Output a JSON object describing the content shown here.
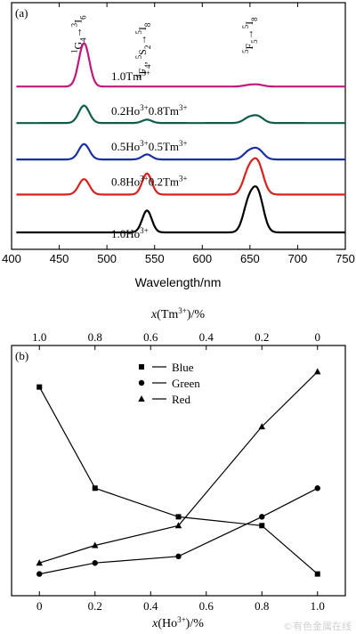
{
  "chart_data": [
    {
      "type": "line",
      "panel_label": "(a)",
      "xlabel": "Wavelength/nm",
      "ylabel": "",
      "xlim": [
        400,
        750
      ],
      "x_ticks": [
        400,
        450,
        500,
        550,
        600,
        650,
        700,
        750
      ],
      "transition_labels": [
        {
          "at_nm": 475,
          "html": "<tspan baseline-shift='super' font-size='9'>1</tspan>G<tspan baseline-shift='sub' font-size='9'>4</tspan>→<tspan baseline-shift='super' font-size='9'>3</tspan>I<tspan baseline-shift='sub' font-size='9'>6</tspan>"
        },
        {
          "at_nm": 543,
          "html": "<tspan baseline-shift='super' font-size='9'>4</tspan>F<tspan baseline-shift='sub' font-size='9'>4</tspan>, <tspan baseline-shift='super' font-size='9'>5</tspan>S<tspan baseline-shift='sub' font-size='9'>2</tspan>→<tspan baseline-shift='super' font-size='9'>5</tspan>I<tspan baseline-shift='sub' font-size='9'>8</tspan>"
        },
        {
          "at_nm": 655,
          "html": "<tspan baseline-shift='super' font-size='9'>5</tspan>F<tspan baseline-shift='sub' font-size='9'>5</tspan>→<tspan baseline-shift='super' font-size='9'>5</tspan>I<tspan baseline-shift='sub' font-size='9'>8</tspan>"
        }
      ],
      "series": [
        {
          "label_html": "1.0Tm<tspan baseline-shift='super' font-size='9'>3+</tspan>",
          "color": "#c2187b",
          "baseline": 5.2,
          "peaks": {
            "blue": 1.55,
            "green": 0.0,
            "red": 0.08
          }
        },
        {
          "label_html": "0.2Ho<tspan baseline-shift='super' font-size='9'>3+</tspan>0.8Tm<tspan baseline-shift='super' font-size='9'>3+</tspan>",
          "color": "#0f5c4a",
          "baseline": 3.9,
          "peaks": {
            "blue": 0.62,
            "green": 0.12,
            "red": 0.28
          }
        },
        {
          "label_html": "0.5Ho<tspan baseline-shift='super' font-size='9'>3+</tspan>0.5Tm<tspan baseline-shift='super' font-size='9'>3+</tspan>",
          "color": "#1a2fa0",
          "baseline": 2.6,
          "peaks": {
            "blue": 0.55,
            "green": 0.18,
            "red": 0.42
          }
        },
        {
          "label_html": "0.8Ho<tspan baseline-shift='super' font-size='9'>3+</tspan>0.2Tm<tspan baseline-shift='super' font-size='9'>3+</tspan>",
          "color": "#d8201c",
          "baseline": 1.35,
          "peaks": {
            "blue": 0.55,
            "green": 0.75,
            "red": 1.3
          }
        },
        {
          "label_html": "1.0Ho<tspan baseline-shift='super' font-size='9'>3+</tspan>",
          "color": "#000000",
          "baseline": 0.0,
          "peaks": {
            "blue": 0.0,
            "green": 0.78,
            "red": 1.65
          }
        }
      ]
    },
    {
      "type": "line",
      "panel_label": "(b)",
      "xlabel_html": "<tspan font-style='italic'>x</tspan>(Ho<tspan baseline-shift='super' font-size='9'>3+</tspan>)/%",
      "x2label_html": "<tspan font-style='italic'>x</tspan>(Tm<tspan baseline-shift='super' font-size='9'>3+</tspan>)/%",
      "x": [
        0,
        0.2,
        0.5,
        0.8,
        1.0
      ],
      "xlim": [
        -0.1,
        1.1
      ],
      "x_ticks": [
        0,
        0.2,
        0.4,
        0.6,
        0.8,
        1.0
      ],
      "x_tick_labels": [
        "0",
        "0.2",
        "0.4",
        "0.6",
        "0.8",
        "1.0"
      ],
      "x2_tick_labels": [
        "1.0",
        "0.8",
        "0.6",
        "0.4",
        "0.2",
        "0"
      ],
      "ylim": [
        0,
        1
      ],
      "legend_position": "top-center",
      "series": [
        {
          "name": "Blue",
          "marker": "square",
          "values": [
            0.88,
            0.42,
            0.29,
            0.25,
            0.03
          ]
        },
        {
          "name": "Green",
          "marker": "circle",
          "values": [
            0.03,
            0.08,
            0.11,
            0.29,
            0.42
          ]
        },
        {
          "name": "Red",
          "marker": "triangle",
          "values": [
            0.08,
            0.16,
            0.25,
            0.7,
            0.95
          ]
        }
      ]
    }
  ],
  "watermark": "©有色金属在线"
}
